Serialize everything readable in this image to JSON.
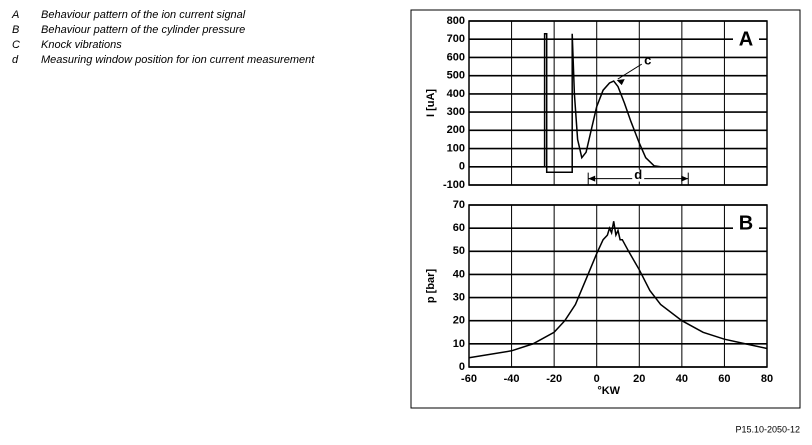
{
  "legend_items": [
    {
      "key": "A",
      "text": "Behaviour pattern of the ion current signal"
    },
    {
      "key": "B",
      "text": "Behaviour pattern of the cylinder pressure"
    },
    {
      "key": "C",
      "text": "Knock vibrations"
    },
    {
      "key": "d",
      "text": "Measuring window position for ion current measurement"
    }
  ],
  "figure_id": "P15.10-2050-12",
  "chart_data": [
    {
      "type": "line",
      "panel_label": "A",
      "y_label": "I [uA]",
      "xlim": [
        -60,
        80
      ],
      "xticks": [
        -60,
        -40,
        -20,
        0,
        20,
        40,
        60,
        80
      ],
      "ylim": [
        -100,
        800
      ],
      "yticks": [
        -100,
        0,
        100,
        200,
        300,
        400,
        500,
        600,
        700,
        800
      ],
      "grid": true,
      "series": [
        {
          "name": "ion current",
          "color": "#000000",
          "x": [
            -60,
            -24.5,
            -24.5,
            -23.5,
            -23.5,
            -11.5,
            -11.5,
            -10.5,
            -9,
            -7,
            -5,
            -3,
            0,
            3,
            6,
            8,
            10,
            13,
            16,
            20,
            23,
            27,
            30,
            80
          ],
          "values": [
            0,
            0,
            730,
            730,
            -30,
            -30,
            730,
            400,
            150,
            50,
            80,
            180,
            330,
            420,
            460,
            470,
            440,
            350,
            250,
            130,
            50,
            5,
            0,
            0
          ]
        }
      ],
      "annotations": [
        {
          "text": "c",
          "x": 8,
          "y": 470
        },
        {
          "text": "d",
          "x": [
            -4,
            43
          ],
          "y": -65
        }
      ]
    },
    {
      "type": "line",
      "panel_label": "B",
      "y_label": "p [bar]",
      "x_label": "°KW",
      "xlim": [
        -60,
        80
      ],
      "xticks": [
        -60,
        -40,
        -20,
        0,
        20,
        40,
        60,
        80
      ],
      "ylim": [
        0,
        70
      ],
      "yticks": [
        0,
        10,
        20,
        30,
        40,
        50,
        60,
        70
      ],
      "grid": true,
      "series": [
        {
          "name": "cylinder pressure",
          "color": "#000000",
          "x": [
            -60,
            -40,
            -30,
            -20,
            -15,
            -10,
            -5,
            0,
            3,
            5,
            6,
            7,
            8,
            9,
            10,
            11,
            12,
            15,
            20,
            25,
            30,
            40,
            50,
            60,
            70,
            80
          ],
          "values": [
            4,
            7,
            10,
            15,
            20,
            27,
            38,
            49,
            55,
            57,
            60,
            58,
            63,
            57,
            59,
            55,
            55,
            50,
            42,
            33,
            27,
            20,
            15,
            12,
            10,
            8
          ]
        }
      ]
    }
  ]
}
